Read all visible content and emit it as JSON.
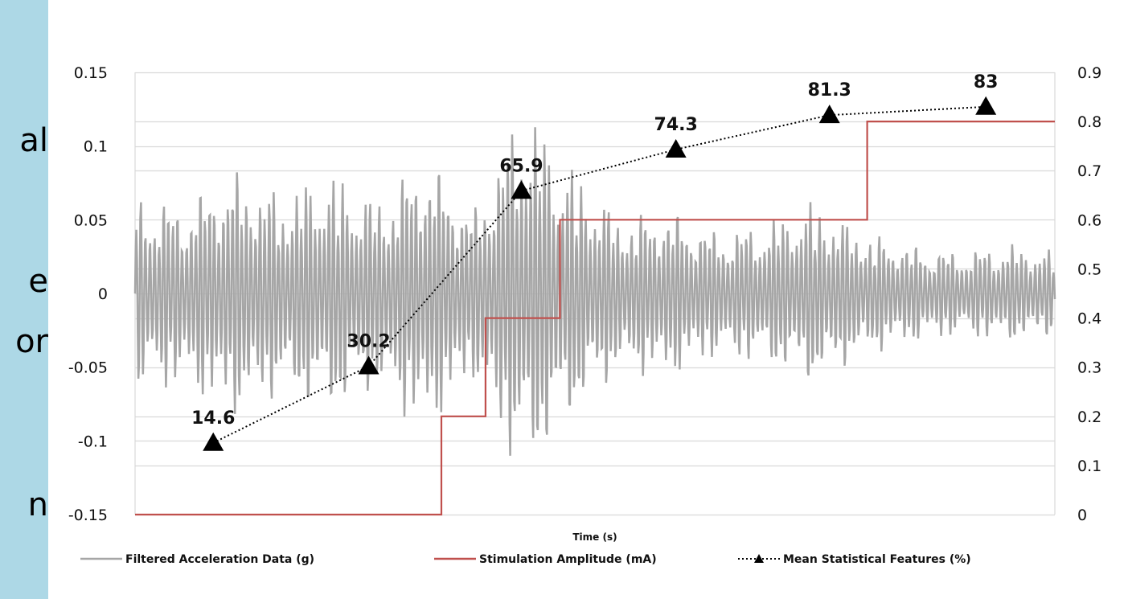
{
  "sidebar": {
    "background": "#add8e6",
    "fragments": [
      "al",
      "e",
      "or",
      "n"
    ]
  },
  "chart_data": {
    "type": "line",
    "title": "",
    "xlabel": "Time (s)",
    "ylabel": "",
    "y2label": "",
    "ylim": [
      -0.15,
      0.15
    ],
    "y2lim": [
      0,
      0.9
    ],
    "yticks": [
      "0.15",
      "0.1",
      "0.05",
      "0",
      "-0.05",
      "-0.1",
      "-0.15"
    ],
    "y2ticks": [
      "0.9",
      "0.8",
      "0.7",
      "0.6",
      "0.5",
      "0.4",
      "0.3",
      "0.2",
      "0.1",
      "0"
    ],
    "grid": true,
    "legend_position": "bottom",
    "series": [
      {
        "name": "Filtered Acceleration Data (g)",
        "axis": "left",
        "color": "#a6a6a6",
        "style": "oscillating signal",
        "sample_peaks": [
          0.07,
          -0.065,
          0.088,
          -0.072,
          0.086,
          -0.068,
          0.1,
          -0.06,
          0.136,
          -0.09,
          0.055,
          -0.06,
          0.045,
          -0.05,
          0.065,
          -0.045,
          0.035,
          -0.03,
          0.035,
          -0.03
        ]
      },
      {
        "name": "Stimulation Amplitude (mA)",
        "axis": "right",
        "color": "#c0504d",
        "style": "step",
        "steps": [
          {
            "level": 0,
            "start": 0.0,
            "end": 0.333
          },
          {
            "level": 0.2,
            "start": 0.333,
            "end": 0.381
          },
          {
            "level": 0.4,
            "start": 0.381,
            "end": 0.462
          },
          {
            "level": 0.6,
            "start": 0.462,
            "end": 0.796
          },
          {
            "level": 0.8,
            "start": 0.796,
            "end": 1.0
          }
        ]
      },
      {
        "name": "Mean Statistical Features (%)",
        "axis": "right",
        "color": "#000000",
        "style": "dotted with triangle markers",
        "x": [
          0.085,
          0.254,
          0.42,
          0.588,
          0.755,
          0.925
        ],
        "values": [
          0.146,
          0.302,
          0.659,
          0.743,
          0.813,
          0.83
        ],
        "labels": [
          "14.6",
          "30.2",
          "65.9",
          "74.3",
          "81.3",
          "83"
        ]
      }
    ]
  }
}
